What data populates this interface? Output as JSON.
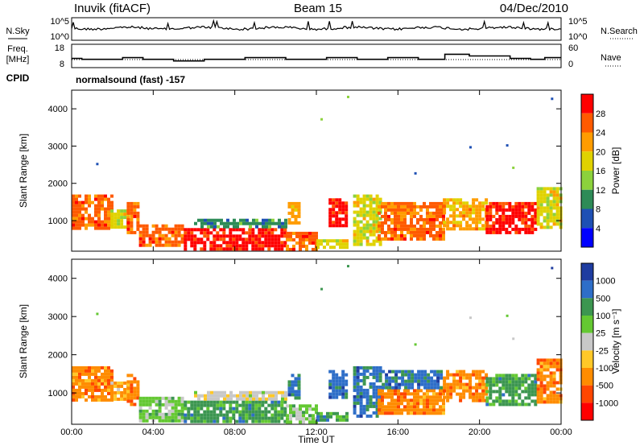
{
  "header": {
    "station": "Inuvik (fitACF)",
    "beam": "Beam 15",
    "date": "04/Dec/2010"
  },
  "chart_data": [
    {
      "type": "line",
      "panel": "noise",
      "left_label": "N.Sky",
      "right_label": "N.Search",
      "left_ticks": [
        "10^5",
        "10^0"
      ],
      "right_ticks": [
        "10^5",
        "10^0"
      ]
    },
    {
      "type": "line",
      "panel": "frequency",
      "left_label_line1": "Freq.",
      "left_label_line2": "[MHz]",
      "right_label": "Nave",
      "left_ticks": [
        "18",
        "8"
      ],
      "right_ticks": [
        "60",
        "0"
      ],
      "freq_ylim": [
        6,
        20
      ],
      "nave_ylim": [
        0,
        60
      ],
      "freq_series": [
        [
          0,
          11.5
        ],
        [
          0.5,
          11
        ],
        [
          2.5,
          12
        ],
        [
          3.5,
          11
        ],
        [
          5,
          10
        ],
        [
          6.5,
          11
        ],
        [
          8.5,
          12
        ],
        [
          10.5,
          11
        ],
        [
          12.5,
          12
        ],
        [
          14,
          11
        ],
        [
          15.5,
          12
        ],
        [
          17,
          11
        ],
        [
          18.3,
          14
        ],
        [
          19.5,
          13
        ],
        [
          21.5,
          11.5
        ],
        [
          22.5,
          11
        ],
        [
          23.2,
          12
        ],
        [
          24,
          12
        ]
      ]
    },
    {
      "type": "table",
      "panel": "cpid",
      "label": "CPID",
      "value": "normalsound (fast) -157"
    },
    {
      "type": "heatmap",
      "panel": "power",
      "ylabel": "Slant Range [km]",
      "x_ticks": [
        "00:00",
        "04:00",
        "08:00",
        "12:00",
        "16:00",
        "20:00",
        "00:00"
      ],
      "y_ticks": [
        "1000",
        "2000",
        "3000",
        "4000"
      ],
      "xlim": [
        0,
        24
      ],
      "ylim": [
        180,
        4500
      ],
      "colorbar_label": "Power [dB]",
      "colorbar_ticks": [
        "28",
        "24",
        "20",
        "16",
        "12",
        "8",
        "4"
      ],
      "colorbar_colors": [
        "#ff0000",
        "#ff5a00",
        "#ff9c00",
        "#e0d200",
        "#8cd23c",
        "#2e8b57",
        "#1e50b4",
        "#0000ff"
      ],
      "regions": [
        {
          "t0": 0.0,
          "t1": 1.9,
          "r0": 800,
          "r1": 1700,
          "level": 1
        },
        {
          "t0": 1.9,
          "t1": 2.8,
          "r0": 800,
          "r1": 1300,
          "level": 3
        },
        {
          "t0": 2.7,
          "t1": 3.3,
          "r0": 700,
          "r1": 1500,
          "level": 1
        },
        {
          "t0": 3.3,
          "t1": 5.5,
          "r0": 300,
          "r1": 900,
          "level": 1
        },
        {
          "t0": 5.5,
          "t1": 10.5,
          "r0": 250,
          "r1": 800,
          "level": 0
        },
        {
          "t0": 6.0,
          "t1": 10.5,
          "r0": 850,
          "r1": 1050,
          "level": 5
        },
        {
          "t0": 10.5,
          "t1": 12.0,
          "r0": 250,
          "r1": 700,
          "level": 1
        },
        {
          "t0": 10.6,
          "t1": 11.2,
          "r0": 900,
          "r1": 1500,
          "level": 2
        },
        {
          "t0": 12.0,
          "t1": 13.5,
          "r0": 250,
          "r1": 500,
          "level": 3
        },
        {
          "t0": 12.6,
          "t1": 13.4,
          "r0": 900,
          "r1": 1600,
          "level": 0
        },
        {
          "t0": 13.8,
          "t1": 15.2,
          "r0": 400,
          "r1": 1700,
          "level": 3
        },
        {
          "t0": 15.0,
          "t1": 18.2,
          "r0": 500,
          "r1": 1500,
          "level": 1
        },
        {
          "t0": 18.2,
          "t1": 20.3,
          "r0": 800,
          "r1": 1600,
          "level": 2
        },
        {
          "t0": 20.3,
          "t1": 22.8,
          "r0": 700,
          "r1": 1500,
          "level": 0
        },
        {
          "t0": 22.8,
          "t1": 24.0,
          "r0": 800,
          "r1": 1900,
          "level": 3
        }
      ],
      "speckle": [
        {
          "t": 1.2,
          "r": 2550,
          "level": 6
        },
        {
          "t": 12.2,
          "r": 3750,
          "level": 4
        },
        {
          "t": 13.5,
          "r": 4350,
          "level": 4
        },
        {
          "t": 16.8,
          "r": 2300,
          "level": 6
        },
        {
          "t": 19.5,
          "r": 3000,
          "level": 6
        },
        {
          "t": 21.3,
          "r": 3050,
          "level": 6
        },
        {
          "t": 21.6,
          "r": 2450,
          "level": 4
        },
        {
          "t": 23.5,
          "r": 4300,
          "level": 6
        }
      ]
    },
    {
      "type": "heatmap",
      "panel": "velocity",
      "ylabel": "Slant Range [km]",
      "xlabel": "Time UT",
      "x_ticks": [
        "00:00",
        "04:00",
        "08:00",
        "12:00",
        "16:00",
        "20:00",
        "00:00"
      ],
      "y_ticks": [
        "1000",
        "2000",
        "3000",
        "4000"
      ],
      "xlim": [
        0,
        24
      ],
      "ylim": [
        180,
        4500
      ],
      "colorbar_label": "Velocity [m s⁻¹]",
      "colorbar_ticks": [
        "1000",
        "500",
        "100",
        "25",
        "-25",
        "-100",
        "-500",
        "-1000"
      ],
      "colorbar_colors": [
        "#1e3ca0",
        "#2e6ec8",
        "#3c9650",
        "#64c832",
        "#c8c8c8",
        "#ffc828",
        "#ff8c00",
        "#ff4600",
        "#ff0000"
      ],
      "regions": [
        {
          "t0": 0.0,
          "t1": 1.9,
          "r0": 800,
          "r1": 1700,
          "level": 6
        },
        {
          "t0": 1.9,
          "t1": 2.8,
          "r0": 800,
          "r1": 1300,
          "level": 5
        },
        {
          "t0": 2.7,
          "t1": 3.3,
          "r0": 700,
          "r1": 1500,
          "level": 6
        },
        {
          "t0": 3.3,
          "t1": 5.5,
          "r0": 300,
          "r1": 900,
          "level": 3
        },
        {
          "t0": 5.5,
          "t1": 10.5,
          "r0": 250,
          "r1": 800,
          "level": 2
        },
        {
          "t0": 6.0,
          "t1": 10.5,
          "r0": 850,
          "r1": 1050,
          "level": 4
        },
        {
          "t0": 10.5,
          "t1": 12.0,
          "r0": 250,
          "r1": 700,
          "level": 3
        },
        {
          "t0": 10.6,
          "t1": 11.2,
          "r0": 900,
          "r1": 1500,
          "level": 1
        },
        {
          "t0": 12.0,
          "t1": 13.5,
          "r0": 250,
          "r1": 500,
          "level": 2
        },
        {
          "t0": 12.6,
          "t1": 13.4,
          "r0": 900,
          "r1": 1600,
          "level": 1
        },
        {
          "t0": 13.8,
          "t1": 15.2,
          "r0": 400,
          "r1": 1700,
          "level": 1
        },
        {
          "t0": 15.0,
          "t1": 18.2,
          "r0": 500,
          "r1": 1100,
          "level": 6
        },
        {
          "t0": 15.2,
          "t1": 18.2,
          "r0": 1100,
          "r1": 1600,
          "level": 1
        },
        {
          "t0": 18.2,
          "t1": 20.3,
          "r0": 800,
          "r1": 1600,
          "level": 6
        },
        {
          "t0": 20.3,
          "t1": 22.8,
          "r0": 700,
          "r1": 1500,
          "level": 2
        },
        {
          "t0": 22.8,
          "t1": 24.0,
          "r0": 800,
          "r1": 1900,
          "level": 6
        }
      ],
      "speckle": [
        {
          "t": 1.2,
          "r": 3100,
          "level": 3
        },
        {
          "t": 12.2,
          "r": 3750,
          "level": 2
        },
        {
          "t": 13.5,
          "r": 4350,
          "level": 2
        },
        {
          "t": 16.8,
          "r": 2300,
          "level": 3
        },
        {
          "t": 19.5,
          "r": 3000,
          "level": 4
        },
        {
          "t": 21.3,
          "r": 3050,
          "level": 3
        },
        {
          "t": 21.6,
          "r": 2450,
          "level": 4
        },
        {
          "t": 23.5,
          "r": 4300,
          "level": 0
        }
      ]
    }
  ]
}
